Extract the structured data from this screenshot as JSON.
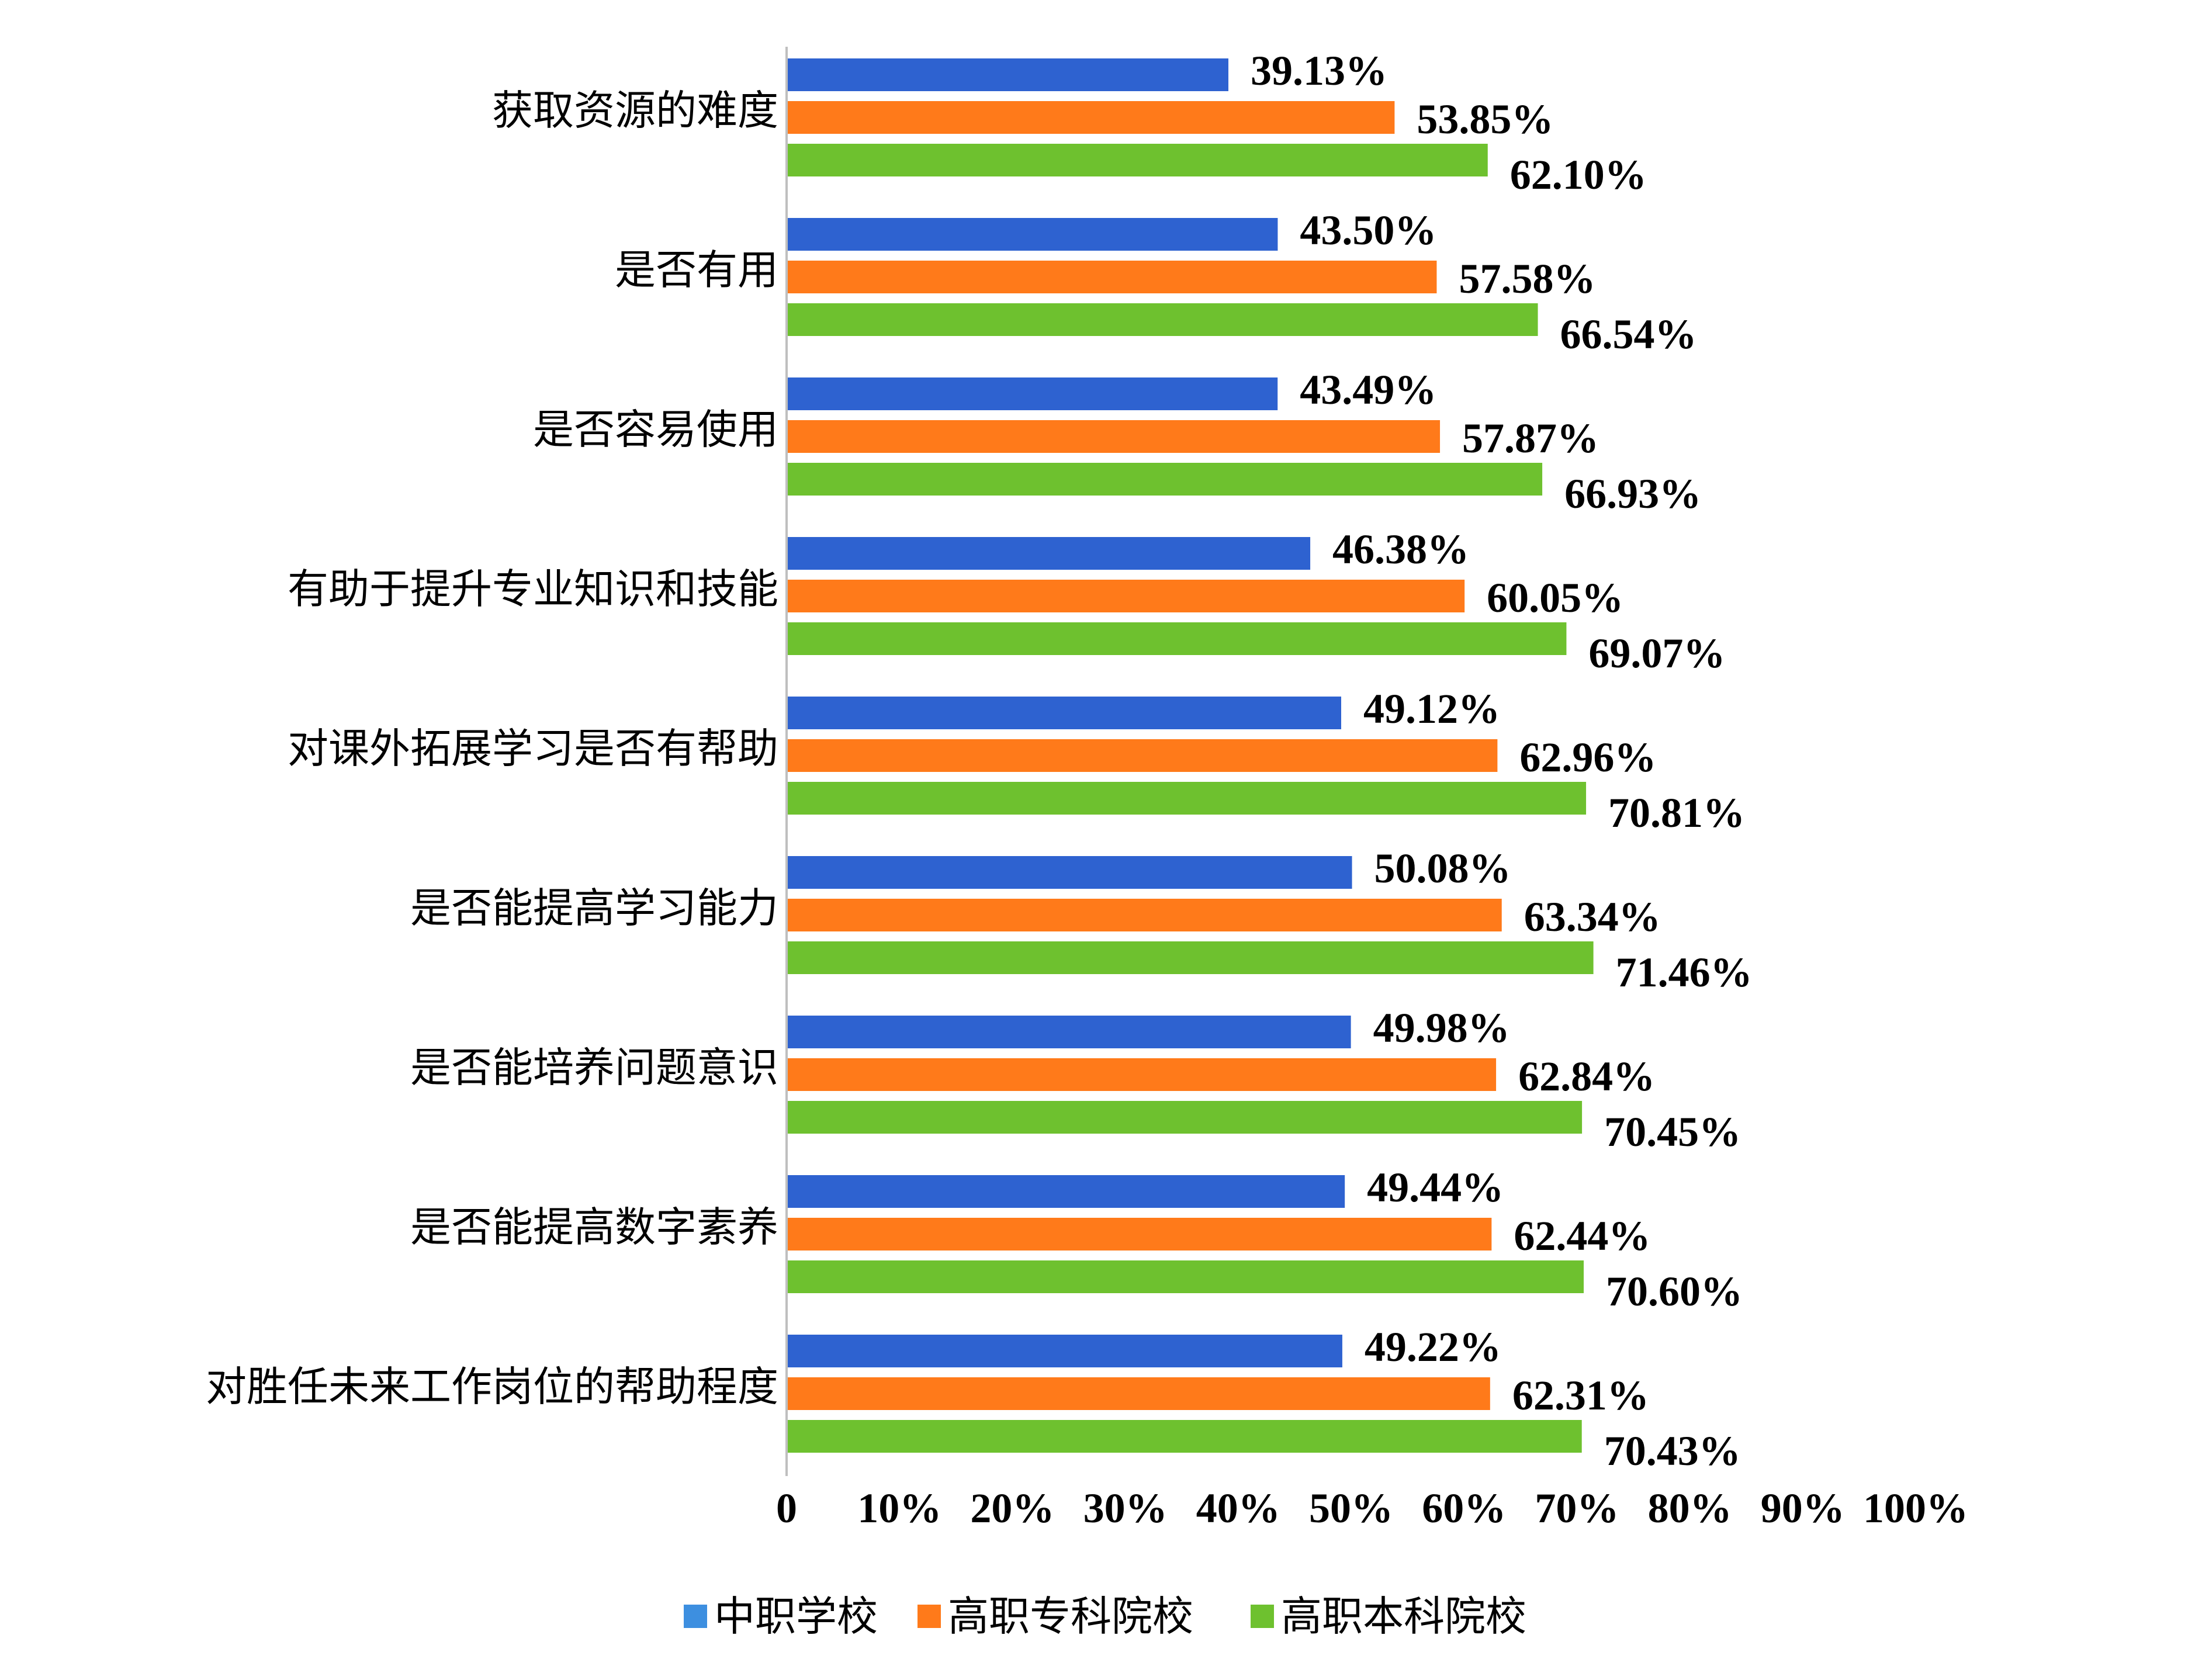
{
  "chart_data": {
    "type": "bar",
    "orientation": "horizontal",
    "categories": [
      "获取资源的难度",
      "是否有用",
      "是否容易使用",
      "有助于提升专业知识和技能",
      "对课外拓展学习是否有帮助",
      "是否能提高学习能力",
      "是否能培养问题意识",
      "是否能提高数字素养",
      "对胜任未来工作岗位的帮助程度"
    ],
    "series": [
      {
        "name": "中职学校",
        "color": "#2E62D0",
        "values": [
          39.13,
          43.5,
          43.49,
          46.38,
          49.12,
          50.08,
          49.98,
          49.44,
          49.22
        ],
        "labels": [
          "39.13%",
          "43.50%",
          "43.49%",
          "46.38%",
          "49.12%",
          "50.08%",
          "49.98%",
          "49.44%",
          "49.22%"
        ]
      },
      {
        "name": "高职专科院校",
        "color": "#FF7A1A",
        "values": [
          53.85,
          57.58,
          57.87,
          60.05,
          62.96,
          63.34,
          62.84,
          62.44,
          62.31
        ],
        "labels": [
          "53.85%",
          "57.58%",
          "57.87%",
          "60.05%",
          "62.96%",
          "63.34%",
          "62.84%",
          "62.44%",
          "62.31%"
        ]
      },
      {
        "name": "高职本科院校",
        "color": "#6EC12F",
        "values": [
          62.1,
          66.54,
          66.93,
          69.07,
          70.81,
          71.46,
          70.45,
          70.6,
          70.43
        ],
        "labels": [
          "62.10%",
          "66.54%",
          "66.93%",
          "69.07%",
          "70.81%",
          "71.46%",
          "70.45%",
          "70.60%",
          "70.43%"
        ]
      }
    ],
    "x_ticks": [
      "0",
      "10%",
      "20%",
      "30%",
      "40%",
      "50%",
      "60%",
      "70%",
      "80%",
      "90%",
      "100%"
    ],
    "xlim": [
      0,
      100
    ],
    "grid": false,
    "legend_position": "bottom",
    "legend_marker_colors": [
      "#3D8FE0",
      "#FF7A1A",
      "#6EC12F"
    ]
  }
}
